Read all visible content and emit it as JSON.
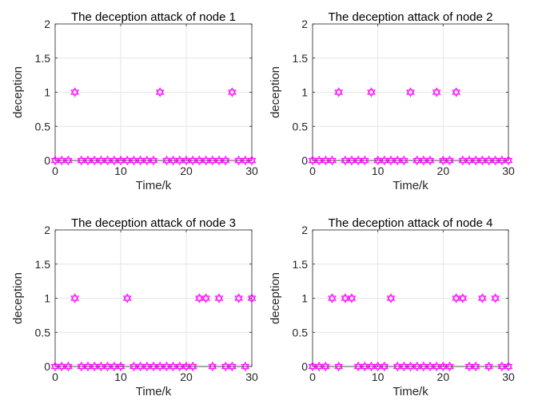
{
  "figure": {
    "background": "#ffffff",
    "marker_color": "#ff00ff",
    "marker_shape": "hexagram",
    "axis_color": "#262626",
    "grid_color": "#e6e6e6"
  },
  "chart_data": [
    {
      "type": "scatter",
      "title": "The deception attack of node 1",
      "xlabel": "Time/k",
      "ylabel": "deception",
      "xlim": [
        0,
        30
      ],
      "ylim": [
        0,
        2
      ],
      "xticks": [
        "0",
        "10",
        "20",
        "30"
      ],
      "yticks": [
        "0",
        "0.5",
        "1",
        "1.5",
        "2"
      ],
      "grid": true,
      "series": [
        {
          "x": [
            0,
            1,
            2,
            3,
            4,
            5,
            6,
            7,
            8,
            9,
            10,
            11,
            12,
            13,
            14,
            15,
            16,
            17,
            18,
            19,
            20,
            21,
            22,
            23,
            24,
            25,
            26,
            27,
            28,
            29,
            30
          ],
          "y": [
            0,
            0,
            0,
            1,
            0,
            0,
            0,
            0,
            0,
            0,
            0,
            0,
            0,
            0,
            0,
            0,
            1,
            0,
            0,
            0,
            0,
            0,
            0,
            0,
            0,
            0,
            0,
            1,
            0,
            0,
            0
          ]
        }
      ]
    },
    {
      "type": "scatter",
      "title": "The deception attack of node 2",
      "xlabel": "Time/k",
      "ylabel": "deception",
      "xlim": [
        0,
        30
      ],
      "ylim": [
        0,
        2
      ],
      "xticks": [
        "0",
        "10",
        "20",
        "30"
      ],
      "yticks": [
        "0",
        "0.5",
        "1",
        "1.5",
        "2"
      ],
      "grid": true,
      "series": [
        {
          "x": [
            0,
            1,
            2,
            3,
            4,
            5,
            6,
            7,
            8,
            9,
            10,
            11,
            12,
            13,
            14,
            15,
            16,
            17,
            18,
            19,
            20,
            21,
            22,
            23,
            24,
            25,
            26,
            27,
            28,
            29,
            30
          ],
          "y": [
            0,
            0,
            0,
            0,
            1,
            0,
            0,
            0,
            0,
            1,
            0,
            0,
            0,
            0,
            0,
            1,
            0,
            0,
            0,
            1,
            0,
            0,
            1,
            0,
            0,
            0,
            0,
            0,
            0,
            0,
            0
          ]
        }
      ]
    },
    {
      "type": "scatter",
      "title": "The deception attack of node 3",
      "xlabel": "Time/k",
      "ylabel": "deception",
      "xlim": [
        0,
        30
      ],
      "ylim": [
        0,
        2
      ],
      "xticks": [
        "0",
        "10",
        "20",
        "30"
      ],
      "yticks": [
        "0",
        "0.5",
        "1",
        "1.5",
        "2"
      ],
      "grid": true,
      "series": [
        {
          "x": [
            0,
            1,
            2,
            3,
            4,
            5,
            6,
            7,
            8,
            9,
            10,
            11,
            12,
            13,
            14,
            15,
            16,
            17,
            18,
            19,
            20,
            21,
            22,
            23,
            24,
            25,
            26,
            27,
            28,
            29,
            30
          ],
          "y": [
            0,
            0,
            0,
            1,
            0,
            0,
            0,
            0,
            0,
            0,
            0,
            1,
            0,
            0,
            0,
            0,
            0,
            0,
            0,
            0,
            0,
            0,
            1,
            1,
            0,
            1,
            0,
            0,
            1,
            0,
            1
          ]
        }
      ]
    },
    {
      "type": "scatter",
      "title": "The deception attack of node 4",
      "xlabel": "Time/k",
      "ylabel": "deception",
      "xlim": [
        0,
        30
      ],
      "ylim": [
        0,
        2
      ],
      "xticks": [
        "0",
        "10",
        "20",
        "30"
      ],
      "yticks": [
        "0",
        "0.5",
        "1",
        "1.5",
        "2"
      ],
      "grid": true,
      "series": [
        {
          "x": [
            0,
            1,
            2,
            3,
            4,
            5,
            6,
            7,
            8,
            9,
            10,
            11,
            12,
            13,
            14,
            15,
            16,
            17,
            18,
            19,
            20,
            21,
            22,
            23,
            24,
            25,
            26,
            27,
            28,
            29,
            30
          ],
          "y": [
            0,
            0,
            0,
            1,
            0,
            1,
            1,
            0,
            0,
            0,
            0,
            0,
            1,
            0,
            0,
            0,
            0,
            0,
            0,
            0,
            0,
            0,
            1,
            1,
            0,
            0,
            1,
            0,
            1,
            0,
            0
          ]
        }
      ]
    }
  ]
}
